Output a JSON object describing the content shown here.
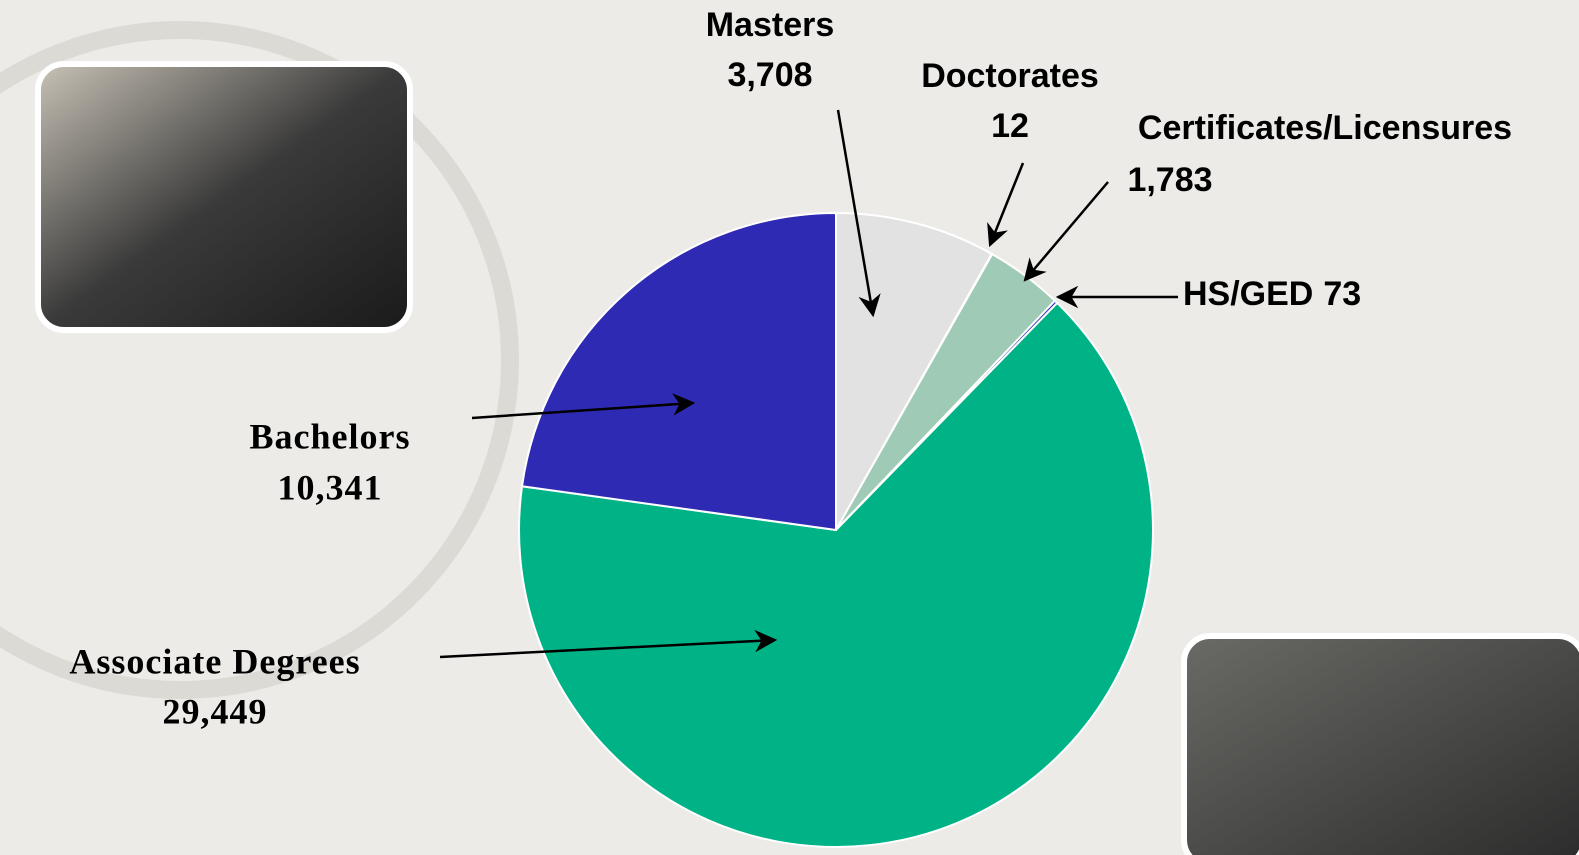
{
  "chart_data": {
    "type": "pie",
    "categories": [
      "Masters",
      "Doctorates",
      "Certificates/Licensures",
      "HS/GED",
      "Associate Degrees",
      "Bachelors"
    ],
    "values": [
      3708,
      12,
      1783,
      73,
      29449,
      10341
    ],
    "value_labels": [
      "3,708",
      "12",
      "1,783",
      "73",
      "29,449",
      "10,341"
    ],
    "colors": [
      "#e2e2e2",
      "#ececec",
      "#9fcab5",
      "#2e2ab4",
      "#00b386",
      "#2e2ab4"
    ]
  }
}
